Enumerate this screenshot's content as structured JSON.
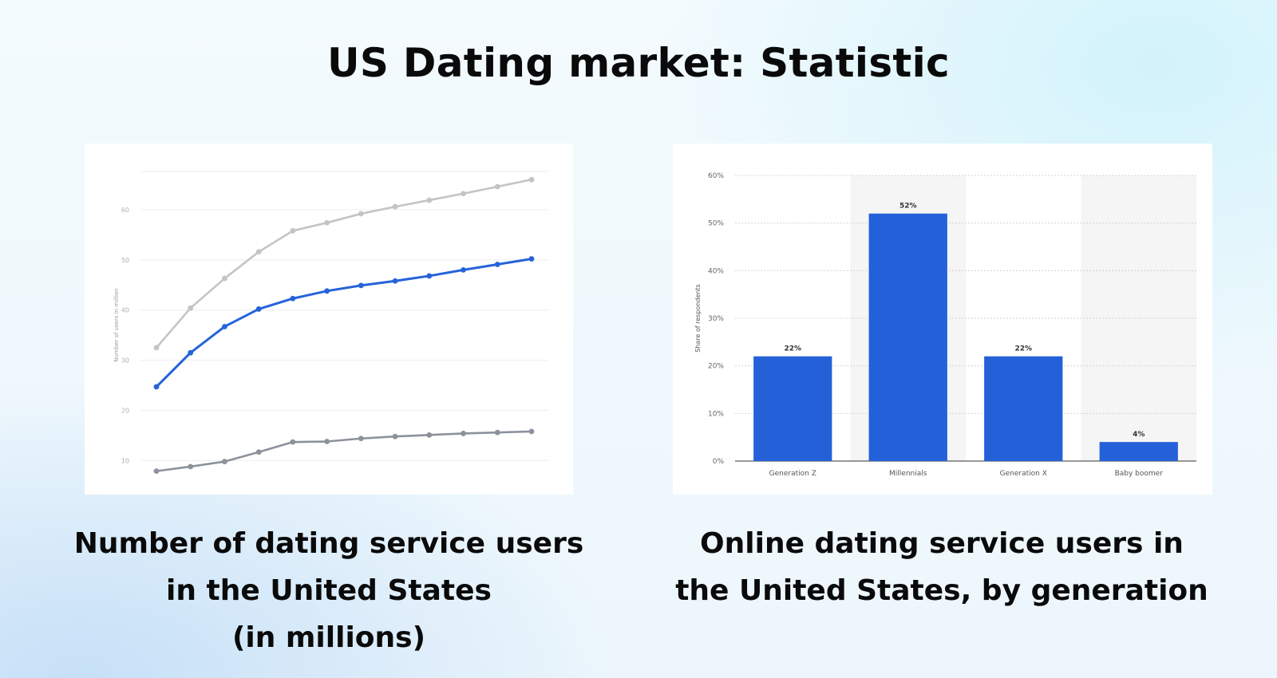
{
  "page": {
    "title": "US Dating market: Statistic"
  },
  "left_chart": {
    "caption_lines": [
      "Number of dating service users",
      "in the United States",
      "(in millions)"
    ]
  },
  "right_chart": {
    "caption_lines": [
      "Online dating service users in",
      "the United States, by generation"
    ]
  },
  "colors": {
    "accent_blue": "#2563da",
    "light_gray_line": "#c4c4c4",
    "dark_gray_line": "#8c929c",
    "bar_blue": "#2461d9"
  },
  "chart_data": [
    {
      "type": "line",
      "title": "",
      "xlabel": "",
      "ylabel": "Number of users in million",
      "ylim": [
        8,
        70
      ],
      "y_ticks": [
        "10",
        "20",
        "30",
        "40",
        "50",
        "60"
      ],
      "x": [
        1,
        2,
        3,
        4,
        5,
        6,
        7,
        8,
        9,
        10,
        11,
        12
      ],
      "grid": true,
      "series": [
        {
          "values": [
            32.5,
            40.4,
            46.3,
            51.6,
            55.8,
            57.4,
            59.2,
            60.6,
            61.9,
            63.2,
            64.6,
            66.0
          ],
          "color": "#c4c4c4"
        },
        {
          "values": [
            24.7,
            31.5,
            36.7,
            40.2,
            42.3,
            43.8,
            44.9,
            45.8,
            46.8,
            48.0,
            49.1,
            50.2
          ],
          "color": "#2563da"
        },
        {
          "values": [
            7.9,
            8.8,
            9.8,
            11.7,
            13.7,
            13.8,
            14.4,
            14.8,
            15.1,
            15.4,
            15.6,
            15.8
          ],
          "color": "#8c929c"
        }
      ]
    },
    {
      "type": "bar",
      "title": "",
      "xlabel": "",
      "ylabel": "Share of respondents",
      "ylim": [
        0,
        60
      ],
      "y_ticks": [
        "0%",
        "10%",
        "20%",
        "30%",
        "40%",
        "50%",
        "60%"
      ],
      "categories": [
        "Generation Z",
        "Millennials",
        "Generation X",
        "Baby boomer"
      ],
      "values": [
        22,
        52,
        22,
        4
      ],
      "data_labels": [
        "22%",
        "52%",
        "22%",
        "4%"
      ],
      "grid": true
    }
  ]
}
